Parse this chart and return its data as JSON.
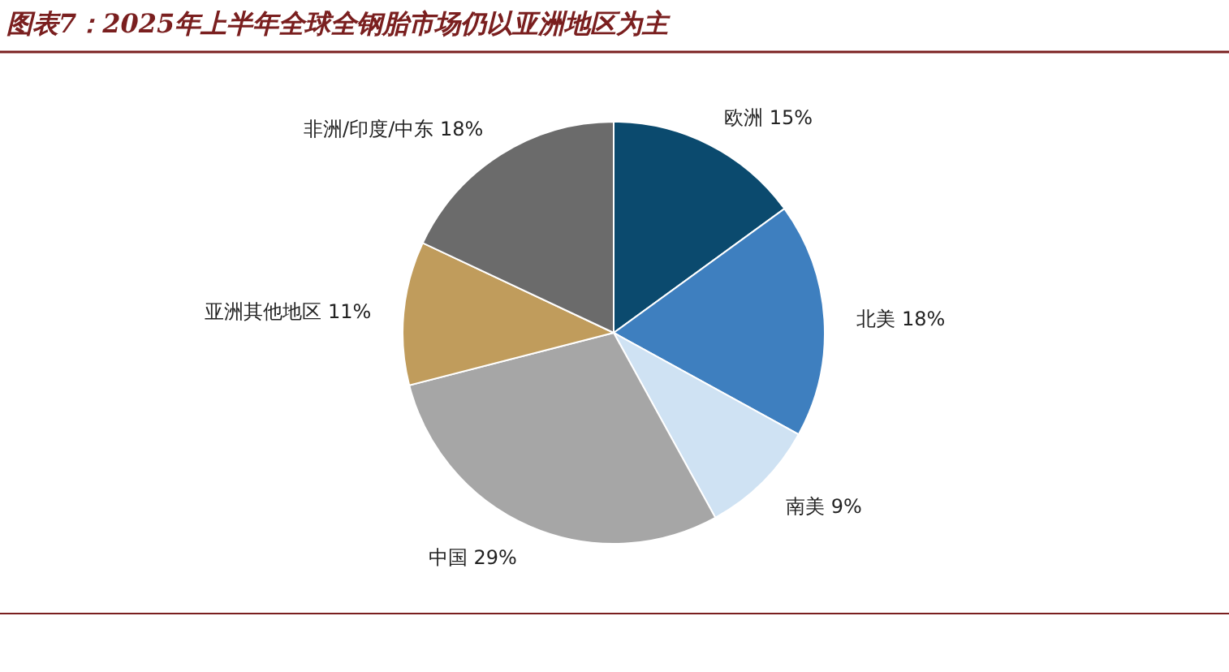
{
  "chart_data": {
    "type": "pie",
    "title": "图表7：2025年上半年全球全钢胎市场仍以亚洲地区为主",
    "categories": [
      "欧洲",
      "北美",
      "南美",
      "中国",
      "亚洲其他地区",
      "非洲/印度/中东"
    ],
    "values": [
      15,
      18,
      9,
      29,
      11,
      18
    ],
    "value_labels": [
      "15%",
      "18%",
      "9%",
      "29%",
      "11%",
      "18%"
    ],
    "colors": [
      "#0b4a6e",
      "#3e7fbf",
      "#cfe2f3",
      "#a6a6a6",
      "#c09c5c",
      "#6b6b6b"
    ],
    "legend": false
  }
}
